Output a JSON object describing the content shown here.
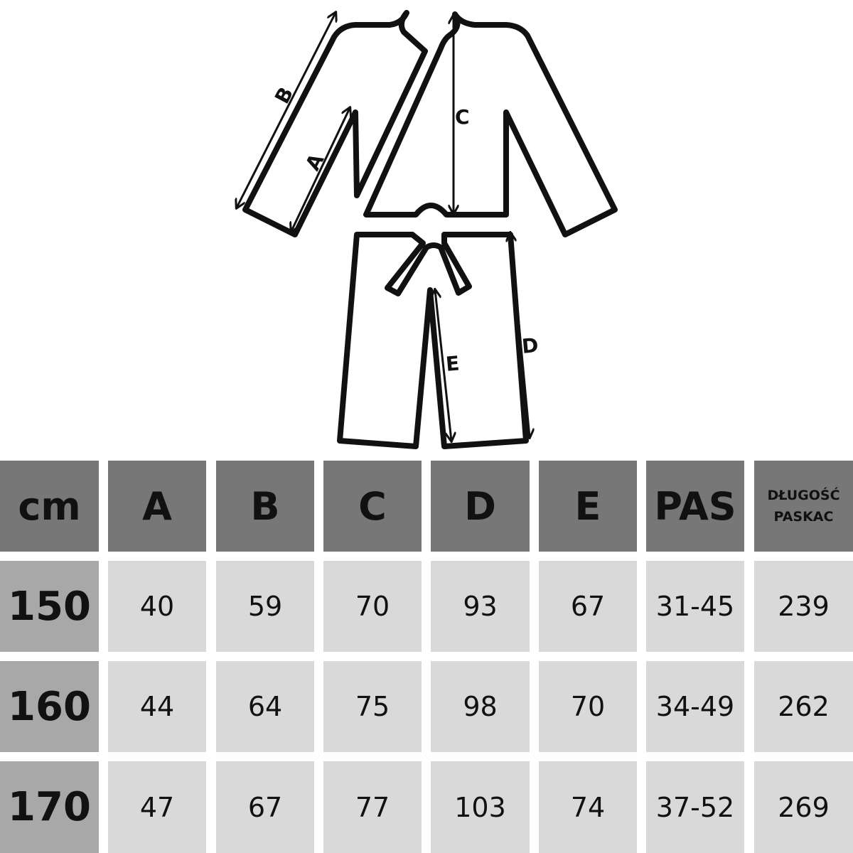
{
  "diagram": {
    "labels": {
      "A": "A",
      "B": "B",
      "C": "C",
      "D": "D",
      "E": "E"
    }
  },
  "table": {
    "headers": [
      "cm",
      "A",
      "B",
      "C",
      "D",
      "E",
      "PAS",
      "DŁUGOŚĆ PASKAC"
    ],
    "header_lines": [
      "DŁUGOŚĆ",
      "PASKAC"
    ],
    "rows": [
      {
        "size": "150",
        "values": [
          "40",
          "59",
          "70",
          "93",
          "67",
          "31-45",
          "239"
        ]
      },
      {
        "size": "160",
        "values": [
          "44",
          "64",
          "75",
          "98",
          "70",
          "34-49",
          "262"
        ]
      },
      {
        "size": "170",
        "values": [
          "47",
          "67",
          "77",
          "103",
          "74",
          "37-52",
          "269"
        ]
      }
    ]
  },
  "colors": {
    "header": "#777777",
    "row_header": "#a8a8a8",
    "cell": "#d9d9d9"
  }
}
